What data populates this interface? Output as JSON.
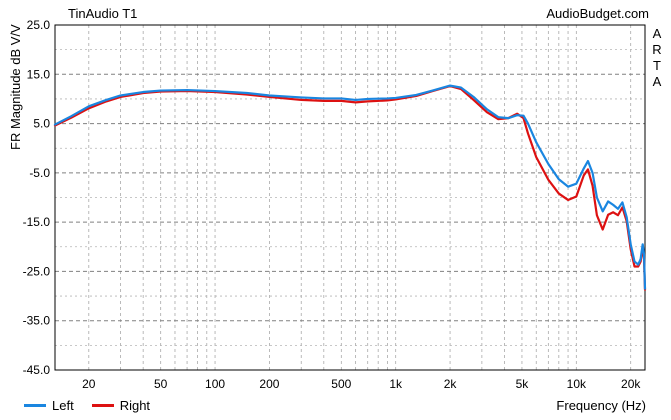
{
  "header": {
    "title": "TinAudio T1",
    "credit": "AudioBudget.com",
    "side_label": "ARTA"
  },
  "chart_data": {
    "type": "line",
    "title": "TinAudio T1",
    "xlabel": "Frequency (Hz)",
    "ylabel": "FR Magnitude dB V/V",
    "x_scale": "log",
    "xlim": [
      13,
      24000
    ],
    "ylim": [
      -45,
      25
    ],
    "y_ticks": [
      25.0,
      15.0,
      5.0,
      -5.0,
      -15.0,
      -25.0,
      -35.0,
      -45.0
    ],
    "y_tick_labels": [
      "25.0",
      "15.0",
      "5.0",
      "-5.0",
      "-15.0",
      "-25.0",
      "-35.0",
      "-45.0"
    ],
    "x_ticks": [
      20,
      50,
      100,
      200,
      500,
      1000,
      2000,
      5000,
      10000,
      20000
    ],
    "x_tick_labels": [
      "20",
      "50",
      "100",
      "200",
      "500",
      "1k",
      "2k",
      "5k",
      "10k",
      "20k"
    ],
    "grid": true,
    "legend_position": "bottom-left",
    "series": [
      {
        "name": "Left",
        "color": "#1a86e0",
        "points": [
          [
            13,
            4.8
          ],
          [
            16,
            6.5
          ],
          [
            20,
            8.5
          ],
          [
            25,
            9.8
          ],
          [
            30,
            10.7
          ],
          [
            40,
            11.4
          ],
          [
            50,
            11.7
          ],
          [
            70,
            11.8
          ],
          [
            100,
            11.6
          ],
          [
            150,
            11.2
          ],
          [
            200,
            10.7
          ],
          [
            300,
            10.3
          ],
          [
            400,
            10.1
          ],
          [
            500,
            10.1
          ],
          [
            600,
            9.8
          ],
          [
            700,
            10.0
          ],
          [
            900,
            10.1
          ],
          [
            1000,
            10.2
          ],
          [
            1300,
            10.8
          ],
          [
            1600,
            11.7
          ],
          [
            2000,
            12.7
          ],
          [
            2300,
            12.3
          ],
          [
            2700,
            10.4
          ],
          [
            3200,
            7.9
          ],
          [
            3700,
            6.3
          ],
          [
            4200,
            6.1
          ],
          [
            4700,
            6.7
          ],
          [
            5100,
            6.6
          ],
          [
            5400,
            5.0
          ],
          [
            6000,
            1.2
          ],
          [
            7000,
            -3.2
          ],
          [
            8000,
            -6.3
          ],
          [
            9000,
            -7.8
          ],
          [
            10000,
            -7.2
          ],
          [
            11000,
            -4.1
          ],
          [
            11600,
            -2.6
          ],
          [
            12300,
            -5.0
          ],
          [
            13000,
            -10.0
          ],
          [
            14000,
            -12.8
          ],
          [
            15000,
            -10.8
          ],
          [
            16000,
            -11.5
          ],
          [
            17000,
            -12.3
          ],
          [
            18000,
            -11.0
          ],
          [
            19000,
            -14.0
          ],
          [
            20000,
            -19.5
          ],
          [
            21000,
            -23.0
          ],
          [
            22000,
            -23.6
          ],
          [
            22700,
            -22.5
          ],
          [
            23300,
            -19.5
          ],
          [
            23700,
            -21.5
          ],
          [
            24000,
            -28.5
          ]
        ]
      },
      {
        "name": "Right",
        "color": "#dd1111",
        "points": [
          [
            13,
            4.6
          ],
          [
            16,
            6.2
          ],
          [
            20,
            8.1
          ],
          [
            25,
            9.5
          ],
          [
            30,
            10.4
          ],
          [
            40,
            11.2
          ],
          [
            50,
            11.5
          ],
          [
            70,
            11.6
          ],
          [
            100,
            11.4
          ],
          [
            150,
            10.9
          ],
          [
            200,
            10.4
          ],
          [
            300,
            9.8
          ],
          [
            400,
            9.6
          ],
          [
            500,
            9.6
          ],
          [
            600,
            9.3
          ],
          [
            700,
            9.5
          ],
          [
            900,
            9.7
          ],
          [
            1000,
            9.9
          ],
          [
            1300,
            10.6
          ],
          [
            1600,
            11.6
          ],
          [
            2000,
            12.6
          ],
          [
            2300,
            12.0
          ],
          [
            2700,
            9.8
          ],
          [
            3200,
            7.3
          ],
          [
            3700,
            5.9
          ],
          [
            4200,
            6.1
          ],
          [
            4700,
            7.0
          ],
          [
            5100,
            6.1
          ],
          [
            5400,
            3.0
          ],
          [
            6000,
            -1.8
          ],
          [
            7000,
            -6.4
          ],
          [
            8000,
            -9.2
          ],
          [
            9000,
            -10.5
          ],
          [
            10000,
            -9.8
          ],
          [
            11000,
            -5.5
          ],
          [
            11600,
            -4.3
          ],
          [
            12300,
            -7.6
          ],
          [
            13000,
            -13.6
          ],
          [
            14000,
            -16.5
          ],
          [
            15000,
            -13.5
          ],
          [
            16000,
            -13.0
          ],
          [
            17000,
            -13.6
          ],
          [
            18000,
            -12.0
          ],
          [
            19000,
            -14.8
          ],
          [
            20000,
            -20.5
          ],
          [
            21000,
            -24.0
          ],
          [
            22000,
            -24.0
          ],
          [
            22700,
            -23.0
          ],
          [
            23300,
            -20.0
          ],
          [
            23700,
            -22.5
          ],
          [
            24000,
            -28.7
          ]
        ]
      }
    ]
  }
}
